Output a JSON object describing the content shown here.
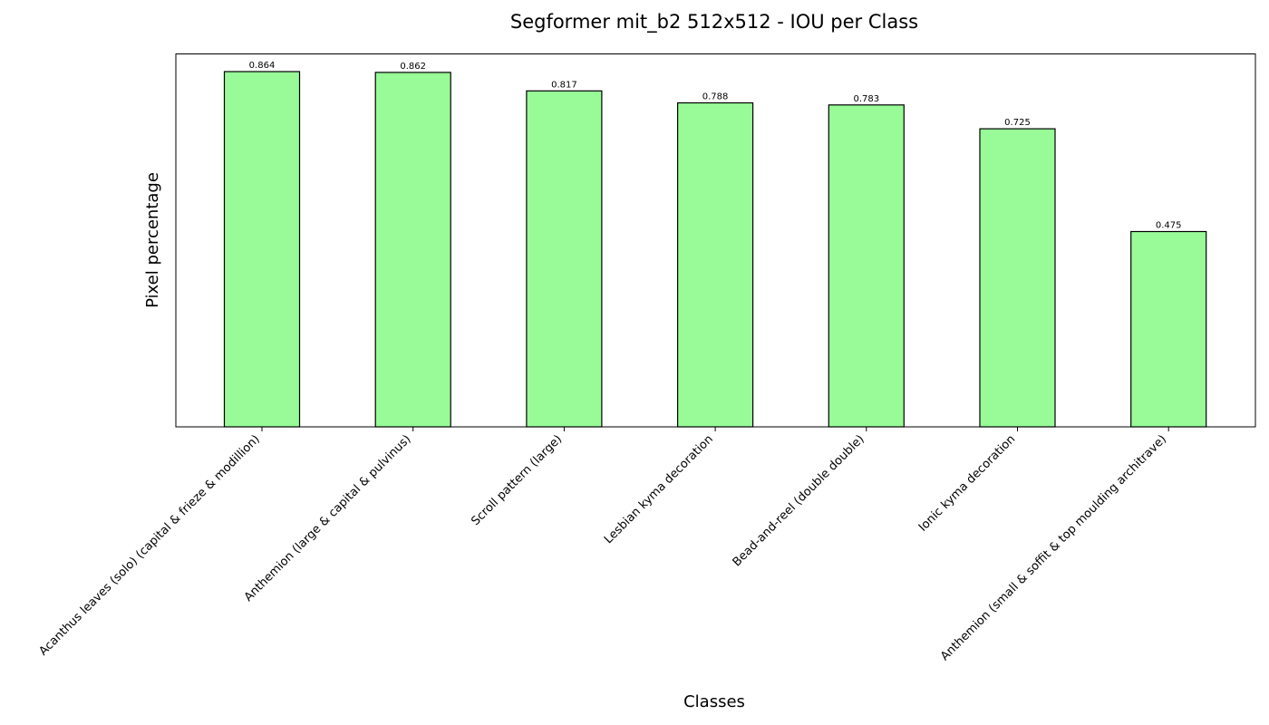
{
  "chart_data": {
    "type": "bar",
    "title": "Segformer mit_b2 512x512 - IOU per Class",
    "xlabel": "Classes",
    "ylabel": "Pixel percentage",
    "categories": [
      "Acanthus leaves (solo) (capital & frieze & modillion)",
      "Anthemion (large & capital & pulvinus)",
      "Scroll pattern (large)",
      "Lesbian kyma decoration",
      "Bead-and-reel (double double)",
      "Ionic kyma decoration",
      "Anthemion (small & soffit & top moulding architrave)"
    ],
    "values": [
      0.864,
      0.862,
      0.817,
      0.788,
      0.783,
      0.725,
      0.475
    ],
    "value_labels": [
      "0.864",
      "0.862",
      "0.817",
      "0.788",
      "0.783",
      "0.725",
      "0.475"
    ],
    "ylim": [
      0,
      0.907
    ],
    "y_ticks_shown": false,
    "grid": false,
    "legend": "none",
    "bar_color": "#98fb98",
    "bar_edge_color": "#000000"
  }
}
